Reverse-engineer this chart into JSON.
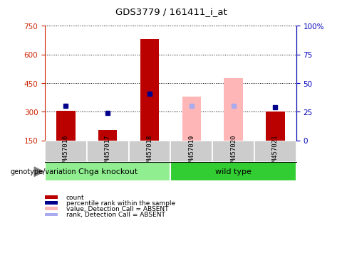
{
  "title": "GDS3779 / 161411_i_at",
  "samples": [
    "GSM457016",
    "GSM457017",
    "GSM457018",
    "GSM457019",
    "GSM457020",
    "GSM457021"
  ],
  "groups": [
    "Chga knockout",
    "Chga knockout",
    "Chga knockout",
    "wild type",
    "wild type",
    "wild type"
  ],
  "group_colors": {
    "Chga knockout": "#90EE90",
    "wild type": "#32CD32"
  },
  "count_values": [
    305,
    205,
    680,
    null,
    null,
    300
  ],
  "percentile_values": [
    330,
    295,
    395,
    null,
    null,
    325
  ],
  "absent_value_values": [
    null,
    null,
    null,
    380,
    475,
    null
  ],
  "absent_rank_values": [
    null,
    null,
    null,
    330,
    330,
    null
  ],
  "bar_bottom": 150,
  "ylim_left": [
    150,
    750
  ],
  "ylim_right": [
    0,
    100
  ],
  "yticks_left": [
    150,
    300,
    450,
    600,
    750
  ],
  "yticks_right": [
    0,
    25,
    50,
    75,
    100
  ],
  "left_axis_color": "#CC2200",
  "right_axis_color": "#0000BB",
  "count_color": "#BB0000",
  "percentile_color": "#00008B",
  "absent_value_color": "#FFB6B6",
  "absent_rank_color": "#AAAAEE",
  "genotype_label": "genotype/variation",
  "legend_items": [
    {
      "label": "count",
      "color": "#BB0000"
    },
    {
      "label": "percentile rank within the sample",
      "color": "#00008B"
    },
    {
      "label": "value, Detection Call = ABSENT",
      "color": "#FFB6B6"
    },
    {
      "label": "rank, Detection Call = ABSENT",
      "color": "#AAAAEE"
    }
  ]
}
